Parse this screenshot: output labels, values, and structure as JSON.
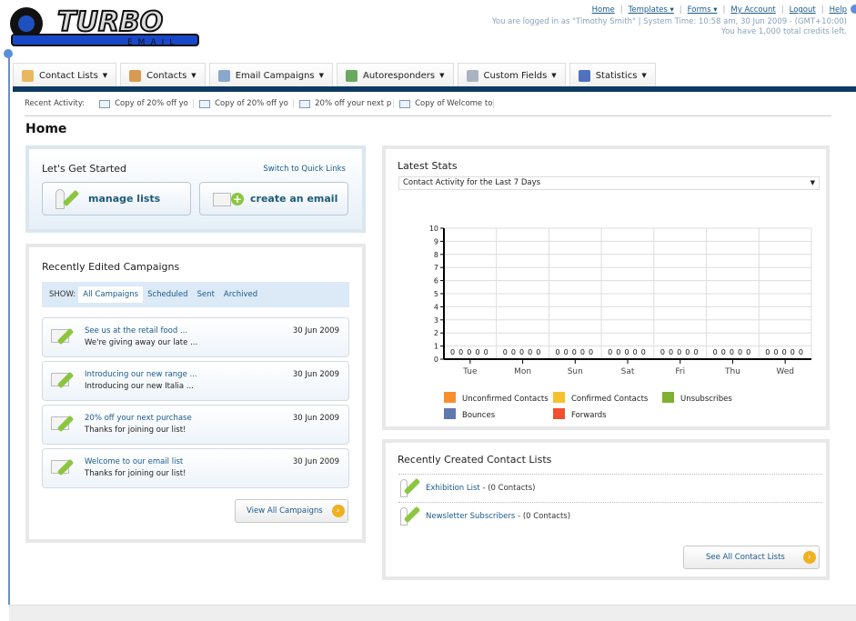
{
  "logo": {
    "text": "TURBO",
    "sub": "EMAIL"
  },
  "toplinks": {
    "items": [
      "Home",
      "Templates ▾",
      "Forms ▾",
      "My Account",
      "Logout",
      "Help"
    ],
    "login": "You are logged in as \"Timothy Smith\" | System Time: 10:58 am, 30 Jun 2009 - (GMT+10:00)",
    "credits": "You have 1,000 total credits left."
  },
  "tabs": [
    {
      "label": "Contact Lists",
      "icon": "contact-lists-icon",
      "color": "#e8b860"
    },
    {
      "label": "Contacts",
      "icon": "contacts-icon",
      "color": "#d89a50"
    },
    {
      "label": "Email Campaigns",
      "icon": "envelope-icon",
      "color": "#8aa8cc"
    },
    {
      "label": "Autoresponders",
      "icon": "autoresponder-icon",
      "color": "#6aa860"
    },
    {
      "label": "Custom Fields",
      "icon": "custom-fields-icon",
      "color": "#aab4c0"
    },
    {
      "label": "Statistics",
      "icon": "bar-chart-icon",
      "color": "#5070c0"
    }
  ],
  "recent": {
    "label": "Recent Activity:",
    "items": [
      "Copy of 20% off yo",
      "Copy of 20% off yo",
      "20% off your next p",
      "Copy of Welcome to"
    ]
  },
  "page_title": "Home",
  "started": {
    "title": "Let's Get Started",
    "quick": "Switch to Quick Links",
    "manage": "manage lists",
    "create": "create an email"
  },
  "campaigns": {
    "title": "Recently Edited Campaigns",
    "show": "SHOW:",
    "filters": [
      "All Campaigns",
      "Scheduled",
      "Sent",
      "Archived"
    ],
    "active_filter": "All Campaigns",
    "items": [
      {
        "title": "See us at the retail food ...",
        "desc": "We're giving away our late ...",
        "date": "30 Jun 2009"
      },
      {
        "title": "Introducing our new range ...",
        "desc": "Introducing our new Italia ...",
        "date": "30 Jun 2009"
      },
      {
        "title": "20% off your next purchase",
        "desc": "Thanks for joining our list!",
        "date": "30 Jun 2009"
      },
      {
        "title": "Welcome to our email list",
        "desc": "Thanks for joining our list!",
        "date": "30 Jun 2009"
      }
    ],
    "view_all": "View All Campaigns"
  },
  "stats": {
    "title": "Latest Stats",
    "select": "Contact Activity for the Last 7 Days"
  },
  "chart_data": {
    "type": "bar",
    "categories": [
      "Tue",
      "Mon",
      "Sun",
      "Sat",
      "Fri",
      "Thu",
      "Wed"
    ],
    "ylim": [
      0,
      10
    ],
    "yticks": [
      0,
      1,
      2,
      3,
      4,
      5,
      6,
      7,
      8,
      9,
      10
    ],
    "grid": true,
    "legend": "bottom",
    "series": [
      {
        "name": "Unconfirmed Contacts",
        "color": "#f7902f",
        "values": [
          0,
          0,
          0,
          0,
          0,
          0,
          0
        ]
      },
      {
        "name": "Confirmed Contacts",
        "color": "#f8c02c",
        "values": [
          0,
          0,
          0,
          0,
          0,
          0,
          0
        ]
      },
      {
        "name": "Unsubscribes",
        "color": "#80b030",
        "values": [
          0,
          0,
          0,
          0,
          0,
          0,
          0
        ]
      },
      {
        "name": "Bounces",
        "color": "#6078b0",
        "values": [
          0,
          0,
          0,
          0,
          0,
          0,
          0
        ]
      },
      {
        "name": "Forwards",
        "color": "#f05030",
        "values": [
          0,
          0,
          0,
          0,
          0,
          0,
          0
        ]
      }
    ]
  },
  "lists": {
    "title": "Recently Created Contact Lists",
    "items": [
      {
        "name": "Exhibition List",
        "count": " - (0 Contacts)"
      },
      {
        "name": "Newsletter Subscribers",
        "count": " - (0 Contacts)"
      }
    ],
    "see_all": "See All Contact Lists"
  }
}
